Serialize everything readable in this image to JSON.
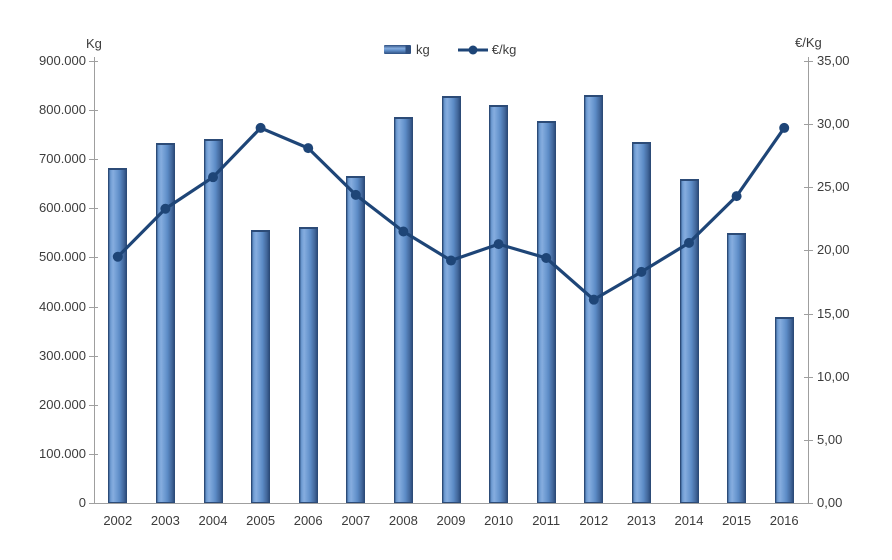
{
  "chart_data": {
    "type": "bar",
    "subtype": "combo-bar-line-dual-axis",
    "categories": [
      "2002",
      "2003",
      "2004",
      "2005",
      "2006",
      "2007",
      "2008",
      "2009",
      "2010",
      "2011",
      "2012",
      "2013",
      "2014",
      "2015",
      "2016"
    ],
    "series": [
      {
        "name": "kg",
        "chart_type": "bar",
        "axis": "left",
        "values": [
          683000,
          733000,
          741000,
          556000,
          562000,
          665000,
          785000,
          829000,
          810000,
          777000,
          831000,
          736000,
          660000,
          550000,
          379000
        ]
      },
      {
        "name": "€/kg",
        "chart_type": "line",
        "axis": "right",
        "values": [
          19.5,
          23.3,
          25.8,
          29.7,
          28.1,
          24.4,
          21.5,
          19.2,
          20.5,
          19.4,
          16.1,
          18.3,
          20.6,
          24.3,
          29.7
        ]
      }
    ],
    "left_axis": {
      "title": "Kg",
      "min": 0,
      "max": 900000,
      "tick_step": 100000,
      "tick_labels": [
        "900.000",
        "800.000",
        "700.000",
        "600.000",
        "500.000",
        "400.000",
        "300.000",
        "200.000",
        "100.000",
        "0"
      ]
    },
    "right_axis": {
      "title": "€/Kg",
      "min": 0,
      "max": 35,
      "tick_step": 5,
      "tick_labels": [
        "35,00",
        "30,00",
        "25,00",
        "20,00",
        "15,00",
        "10,00",
        "5,00",
        "0,00"
      ]
    },
    "legend": [
      {
        "label": "kg",
        "marker": "bar"
      },
      {
        "label": "€/kg",
        "marker": "line"
      }
    ],
    "grid": "off",
    "legend_position": "top-center",
    "colors": {
      "bar_fill": "#5C8BC6",
      "bar_highlight": "#86ADDF",
      "bar_shadow": "#2E4F80",
      "bar_border": "#2C4B77",
      "line": "#1E4577",
      "axis": "#9F9F9F",
      "text": "#3C3C3C"
    }
  }
}
